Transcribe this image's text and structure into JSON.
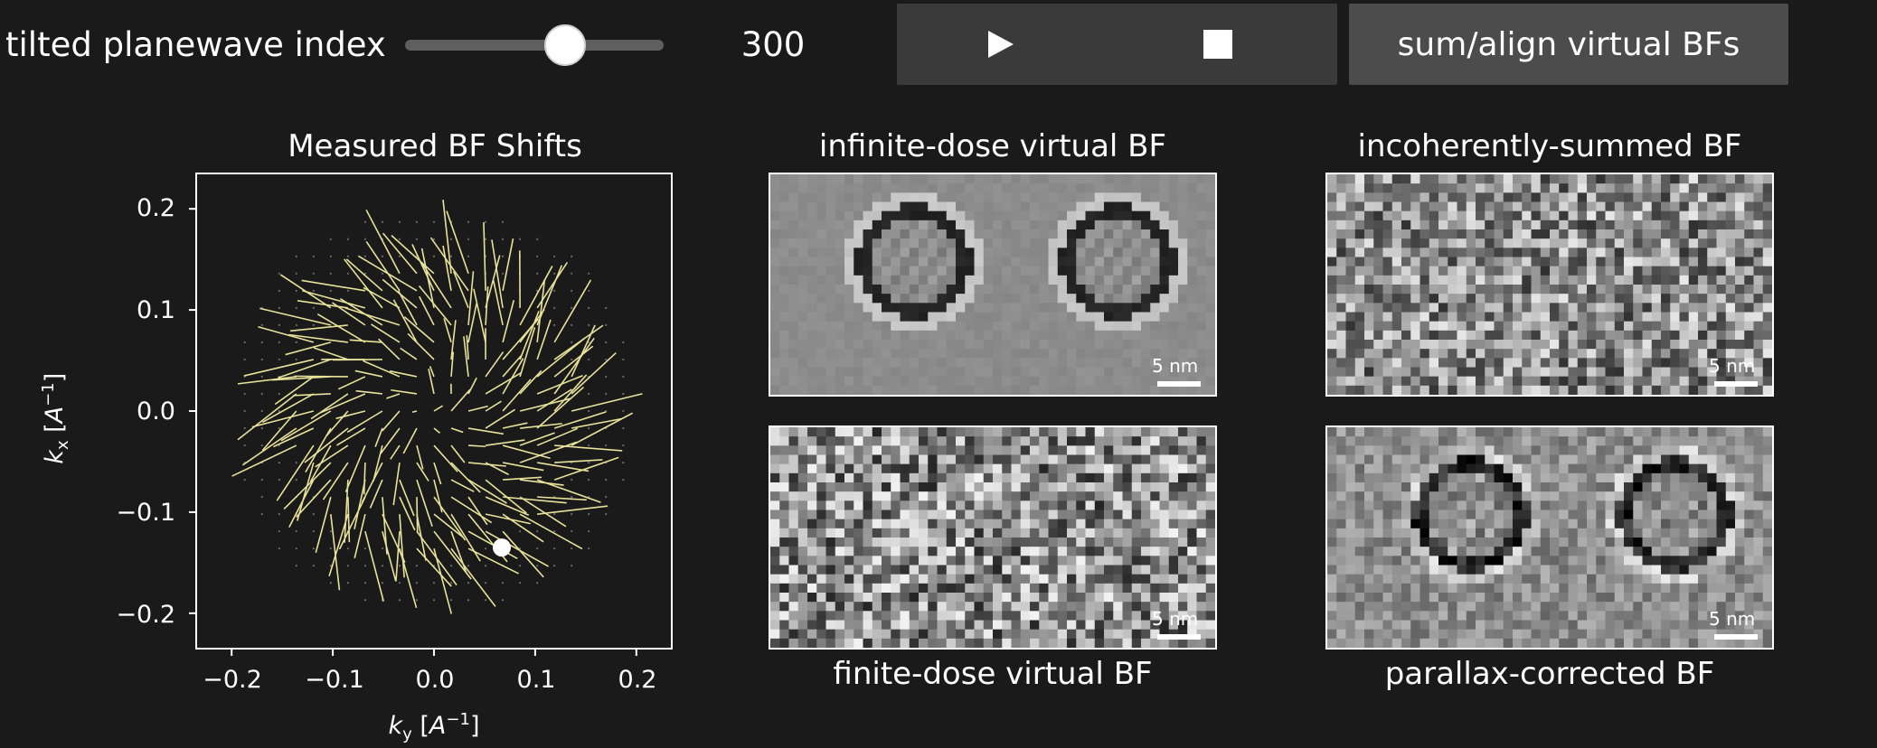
{
  "controls": {
    "slider_label": "tilted planewave index",
    "slider_value": "300",
    "slider_fraction": 0.62,
    "sum_button_label": "sum/align virtual BFs",
    "play_icon": "play-icon",
    "stop_icon": "stop-icon"
  },
  "quiver_plot": {
    "title": "Measured BF Shifts",
    "xlabel": "k_y [A^-1]",
    "ylabel": "k_x [A^-1]",
    "x_ticks": [
      "−0.2",
      "−0.1",
      "0.0",
      "0.1",
      "0.2"
    ],
    "y_ticks": [
      "0.2",
      "0.1",
      "0.0",
      "−0.1",
      "−0.2"
    ],
    "arrow_color": "#e8e29a"
  },
  "chart_data": {
    "type": "scatter",
    "title": "Measured BF Shifts",
    "xlabel": "k_y [A^-1]",
    "ylabel": "k_x [A^-1]",
    "xlim": [
      -0.235,
      0.235
    ],
    "ylim": [
      -0.235,
      0.235
    ],
    "arrow_region_radius": 0.145,
    "grid_spacing": 0.017,
    "selected_point": {
      "x": 0.067,
      "y": -0.135
    }
  },
  "panels": {
    "infinite": {
      "title": "infinite-dose virtual BF",
      "scale": "5 nm"
    },
    "incoherent": {
      "title": "incoherently-summed BF",
      "scale": "5 nm"
    },
    "finite": {
      "title": "finite-dose virtual BF",
      "scale": "5 nm"
    },
    "parallax": {
      "title": "parallax-corrected BF",
      "scale": "5 nm"
    }
  }
}
